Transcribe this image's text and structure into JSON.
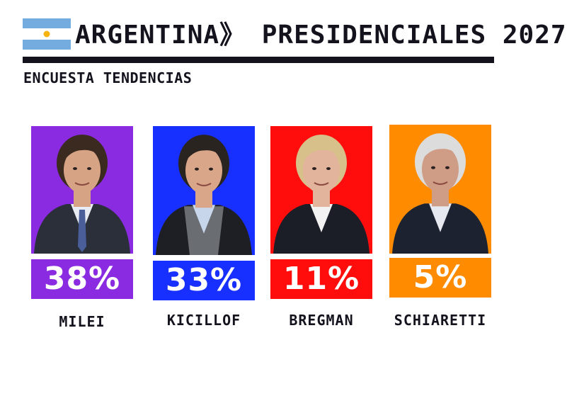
{
  "header": {
    "title": "ARGENTINA》 PRESIDENCIALES 2027",
    "subtitle": "ENCUESTA TENDENCIAS"
  },
  "colors": {
    "flag_blue": "#74acdf",
    "flag_white": "#ffffff",
    "sun": "#f6b40e",
    "rule": "#14121c"
  },
  "chart_data": {
    "type": "bar",
    "title": "ARGENTINA》 PRESIDENCIALES 2027",
    "subtitle": "ENCUESTA TENDENCIAS",
    "categories": [
      "MILEI",
      "KICILLOF",
      "BREGMAN",
      "SCHIARETTI"
    ],
    "values": [
      38,
      33,
      11,
      5
    ],
    "unit": "%",
    "value_labels": [
      "38%",
      "33%",
      "11%",
      "5%"
    ],
    "colors": [
      "#8a2be2",
      "#1730ff",
      "#ff0d0d",
      "#ff8c00"
    ]
  }
}
